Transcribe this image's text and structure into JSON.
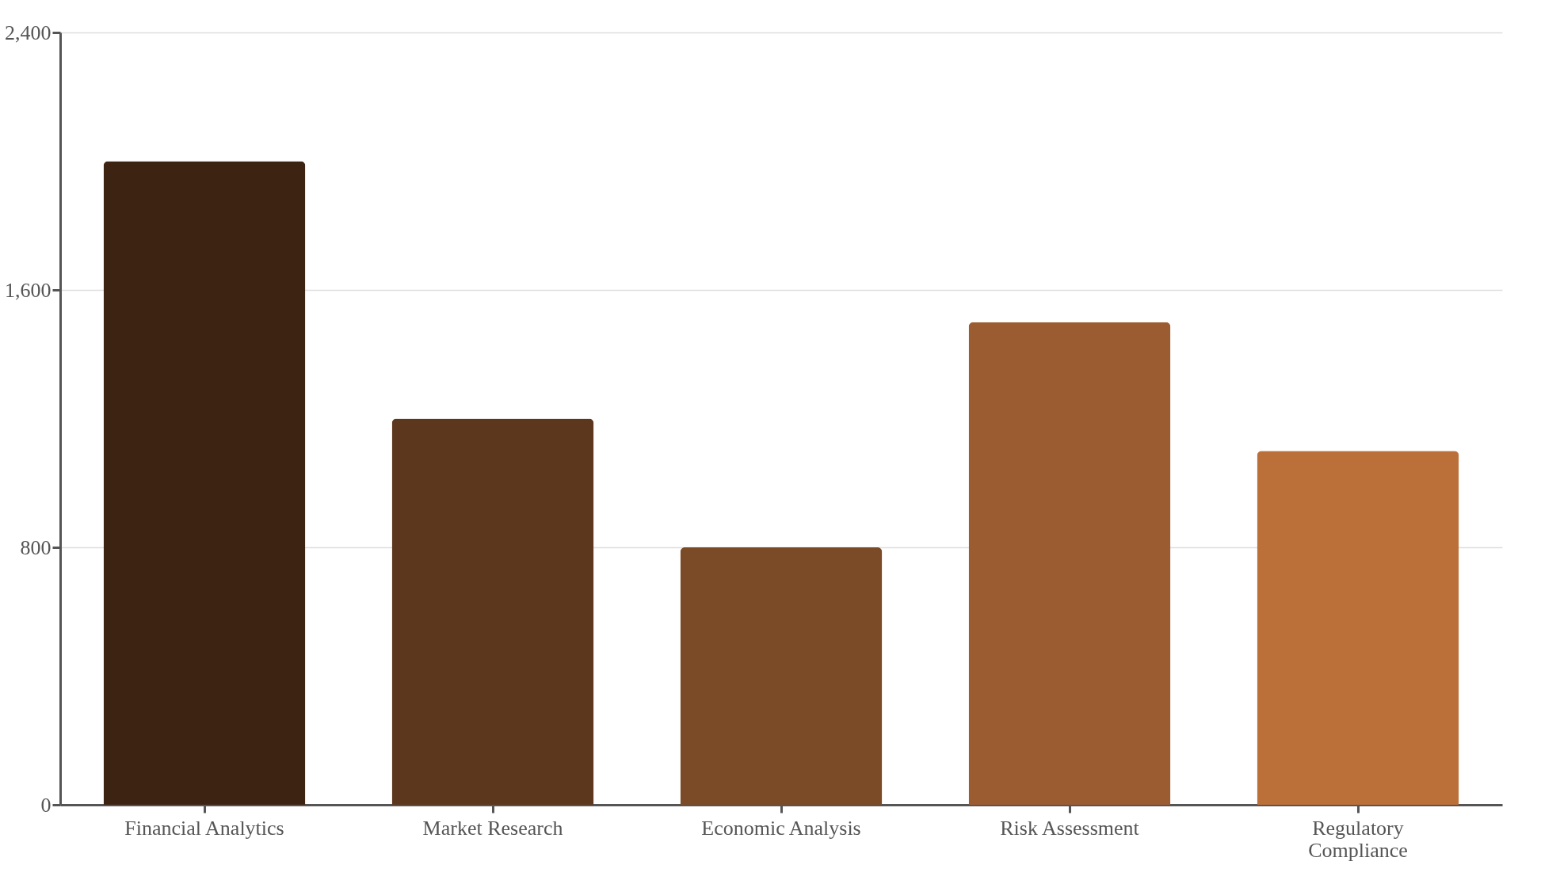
{
  "chart_data": {
    "type": "bar",
    "categories": [
      "Financial Analytics",
      "Market Research",
      "Economic Analysis",
      "Risk Assessment",
      "Regulatory Compliance"
    ],
    "values": [
      2000,
      1200,
      800,
      1500,
      1100
    ],
    "colors": [
      "#3c2312",
      "#5c361d",
      "#7b4a27",
      "#9c5c31",
      "#bb703a"
    ],
    "ylim": [
      0,
      2400
    ],
    "yticks": [
      0,
      {
        "value": 800,
        "label": "800"
      },
      {
        "value": 1600,
        "label": "1,600"
      },
      {
        "value": 2400,
        "label": "2,400"
      }
    ],
    "grid": "y"
  }
}
